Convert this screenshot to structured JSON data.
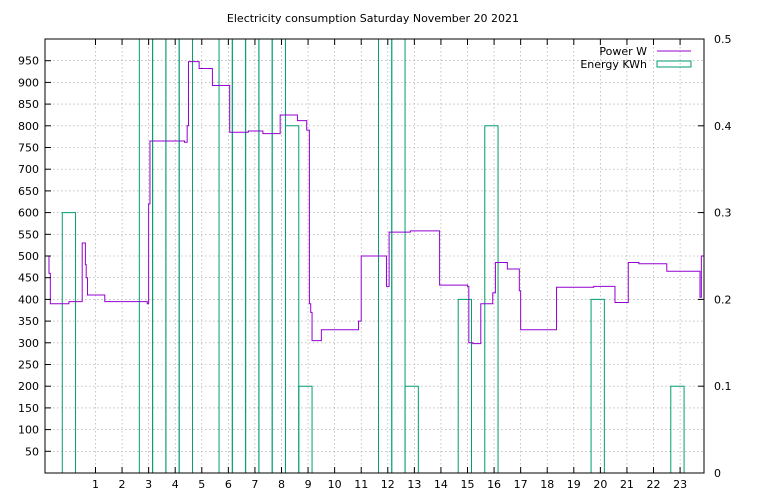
{
  "chart_data": {
    "type": "line",
    "title": "Electricity consumption Saturday November 20 2021",
    "x_ticks": [
      1,
      2,
      3,
      4,
      5,
      6,
      7,
      8,
      9,
      10,
      11,
      12,
      13,
      14,
      15,
      16,
      17,
      18,
      19,
      20,
      21,
      22,
      23
    ],
    "xlim": [
      -0.9,
      23.9
    ],
    "y_ticks": [
      50,
      100,
      150,
      200,
      250,
      300,
      350,
      400,
      450,
      500,
      550,
      600,
      650,
      700,
      750,
      800,
      850,
      900,
      950
    ],
    "ylim": [
      0,
      1000
    ],
    "y2_ticks": [
      "0",
      "0.1",
      "0.2",
      "0.3",
      "0.4",
      "0.5"
    ],
    "y2lim": [
      0,
      0.5
    ],
    "grid": true,
    "legend_position": "top-right",
    "legend": {
      "power": "Power W",
      "energy": "Energy KWh"
    },
    "colors": {
      "power": "#9400d3",
      "energy": "#009e73"
    },
    "series": [
      {
        "name": "Power W",
        "axis": "y",
        "style": "step",
        "x": [
          -0.9,
          -0.75,
          -0.7,
          0.0,
          0.5,
          0.62,
          0.65,
          0.7,
          1.35,
          2.55,
          2.95,
          3.0,
          3.05,
          4.35,
          4.45,
          4.5,
          4.9,
          5.4,
          6.05,
          6.75,
          7.3,
          7.95,
          8.6,
          8.95,
          9.05,
          9.1,
          9.15,
          9.5,
          10.9,
          11.0,
          11.05,
          11.95,
          12.0,
          12.05,
          12.8,
          12.85,
          13.8,
          13.95,
          15.0,
          15.05,
          15.2,
          15.5,
          15.95,
          16.05,
          16.5,
          16.95,
          17.0,
          18.25,
          18.35,
          19.75,
          20.55,
          21.05,
          21.45,
          22.5,
          23.75,
          23.8,
          23.9
        ],
        "y": [
          500,
          460,
          390,
          395,
          530,
          480,
          450,
          410,
          395,
          395,
          390,
          620,
          765,
          762,
          800,
          948,
          932,
          893,
          785,
          788,
          782,
          825,
          812,
          790,
          390,
          370,
          305,
          330,
          350,
          500,
          500,
          430,
          430,
          555,
          555,
          558,
          558,
          433,
          430,
          300,
          298,
          390,
          415,
          485,
          470,
          420,
          330,
          330,
          428,
          430,
          393,
          485,
          482,
          465,
          405,
          500,
          500
        ]
      },
      {
        "name": "Energy KWh",
        "axis": "y2",
        "style": "impulse",
        "x": [
          0,
          2.9,
          3.4,
          3.9,
          4.4,
          5.9,
          6.4,
          6.9,
          7.4,
          7.9,
          8.4,
          8.9,
          11.9,
          12.4,
          12.9,
          14.9,
          15.9,
          19.9,
          22.9
        ],
        "y": [
          0.3,
          0.5,
          0.5,
          0.5,
          0.5,
          0.5,
          0.5,
          0.5,
          0.5,
          0.5,
          0.4,
          0.1,
          0.5,
          0.5,
          0.1,
          0.2,
          0.4,
          0.2,
          0.1
        ]
      }
    ]
  }
}
